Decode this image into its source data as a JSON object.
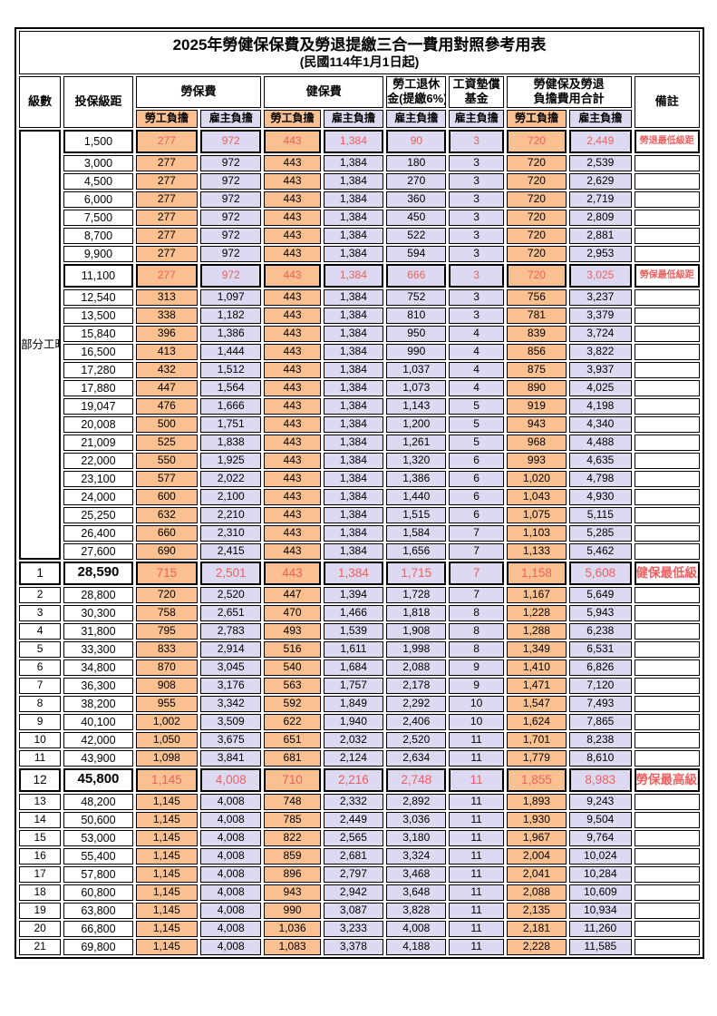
{
  "title": "2025年勞健保保費及勞退提繳三合一費用對照參考用表",
  "subtitle": "(民國114年1月1日起)",
  "colors": {
    "employee_bg": "#FAC090",
    "employer_bg": "#DCD9F0",
    "highlight_red": "#EE5F5F",
    "border": "#000000"
  },
  "header": {
    "level": "級數",
    "bracket": "投保級距",
    "labor_insurance": "勞保費",
    "health_insurance": "健保費",
    "pension_line1": "勞工退休",
    "pension_line2": "金(提繳6%)",
    "wage_fund_line1": "工資墊償",
    "wage_fund_line2": "基金",
    "total_line1": "勞健保及勞退",
    "total_line2": "負擔費用合計",
    "note": "備註",
    "employee_share": "勞工負擔",
    "employer_share": "雇主負擔"
  },
  "part_time_label": "部分工時",
  "rows": [
    {
      "lv": "",
      "br": "1,500",
      "a": "277",
      "b": "972",
      "c": "443",
      "d": "1,384",
      "e": "90",
      "f": "3",
      "g": "720",
      "h": "2,449",
      "note": "勞退最低級距",
      "hl": true
    },
    {
      "lv": "",
      "br": "3,000",
      "a": "277",
      "b": "972",
      "c": "443",
      "d": "1,384",
      "e": "180",
      "f": "3",
      "g": "720",
      "h": "2,539",
      "note": ""
    },
    {
      "lv": "",
      "br": "4,500",
      "a": "277",
      "b": "972",
      "c": "443",
      "d": "1,384",
      "e": "270",
      "f": "3",
      "g": "720",
      "h": "2,629",
      "note": ""
    },
    {
      "lv": "",
      "br": "6,000",
      "a": "277",
      "b": "972",
      "c": "443",
      "d": "1,384",
      "e": "360",
      "f": "3",
      "g": "720",
      "h": "2,719",
      "note": ""
    },
    {
      "lv": "",
      "br": "7,500",
      "a": "277",
      "b": "972",
      "c": "443",
      "d": "1,384",
      "e": "450",
      "f": "3",
      "g": "720",
      "h": "2,809",
      "note": ""
    },
    {
      "lv": "",
      "br": "8,700",
      "a": "277",
      "b": "972",
      "c": "443",
      "d": "1,384",
      "e": "522",
      "f": "3",
      "g": "720",
      "h": "2,881",
      "note": ""
    },
    {
      "lv": "",
      "br": "9,900",
      "a": "277",
      "b": "972",
      "c": "443",
      "d": "1,384",
      "e": "594",
      "f": "3",
      "g": "720",
      "h": "2,953",
      "note": ""
    },
    {
      "lv": "",
      "br": "11,100",
      "a": "277",
      "b": "972",
      "c": "443",
      "d": "1,384",
      "e": "666",
      "f": "3",
      "g": "720",
      "h": "3,025",
      "note": "勞保最低級距",
      "hl": true
    },
    {
      "lv": "",
      "br": "12,540",
      "a": "313",
      "b": "1,097",
      "c": "443",
      "d": "1,384",
      "e": "752",
      "f": "3",
      "g": "756",
      "h": "3,237",
      "note": ""
    },
    {
      "lv": "",
      "br": "13,500",
      "a": "338",
      "b": "1,182",
      "c": "443",
      "d": "1,384",
      "e": "810",
      "f": "3",
      "g": "781",
      "h": "3,379",
      "note": ""
    },
    {
      "lv": "",
      "br": "15,840",
      "a": "396",
      "b": "1,386",
      "c": "443",
      "d": "1,384",
      "e": "950",
      "f": "4",
      "g": "839",
      "h": "3,724",
      "note": ""
    },
    {
      "lv": "",
      "br": "16,500",
      "a": "413",
      "b": "1,444",
      "c": "443",
      "d": "1,384",
      "e": "990",
      "f": "4",
      "g": "856",
      "h": "3,822",
      "note": ""
    },
    {
      "lv": "",
      "br": "17,280",
      "a": "432",
      "b": "1,512",
      "c": "443",
      "d": "1,384",
      "e": "1,037",
      "f": "4",
      "g": "875",
      "h": "3,937",
      "note": ""
    },
    {
      "lv": "",
      "br": "17,880",
      "a": "447",
      "b": "1,564",
      "c": "443",
      "d": "1,384",
      "e": "1,073",
      "f": "4",
      "g": "890",
      "h": "4,025",
      "note": ""
    },
    {
      "lv": "",
      "br": "19,047",
      "a": "476",
      "b": "1,666",
      "c": "443",
      "d": "1,384",
      "e": "1,143",
      "f": "5",
      "g": "919",
      "h": "4,198",
      "note": ""
    },
    {
      "lv": "",
      "br": "20,008",
      "a": "500",
      "b": "1,751",
      "c": "443",
      "d": "1,384",
      "e": "1,200",
      "f": "5",
      "g": "943",
      "h": "4,340",
      "note": ""
    },
    {
      "lv": "",
      "br": "21,009",
      "a": "525",
      "b": "1,838",
      "c": "443",
      "d": "1,384",
      "e": "1,261",
      "f": "5",
      "g": "968",
      "h": "4,488",
      "note": ""
    },
    {
      "lv": "",
      "br": "22,000",
      "a": "550",
      "b": "1,925",
      "c": "443",
      "d": "1,384",
      "e": "1,320",
      "f": "6",
      "g": "993",
      "h": "4,635",
      "note": ""
    },
    {
      "lv": "",
      "br": "23,100",
      "a": "577",
      "b": "2,022",
      "c": "443",
      "d": "1,384",
      "e": "1,386",
      "f": "6",
      "g": "1,020",
      "h": "4,798",
      "note": ""
    },
    {
      "lv": "",
      "br": "24,000",
      "a": "600",
      "b": "2,100",
      "c": "443",
      "d": "1,384",
      "e": "1,440",
      "f": "6",
      "g": "1,043",
      "h": "4,930",
      "note": ""
    },
    {
      "lv": "",
      "br": "25,250",
      "a": "632",
      "b": "2,210",
      "c": "443",
      "d": "1,384",
      "e": "1,515",
      "f": "6",
      "g": "1,075",
      "h": "5,115",
      "note": ""
    },
    {
      "lv": "",
      "br": "26,400",
      "a": "660",
      "b": "2,310",
      "c": "443",
      "d": "1,384",
      "e": "1,584",
      "f": "7",
      "g": "1,103",
      "h": "5,285",
      "note": ""
    },
    {
      "lv": "",
      "br": "27,600",
      "a": "690",
      "b": "2,415",
      "c": "443",
      "d": "1,384",
      "e": "1,656",
      "f": "7",
      "g": "1,133",
      "h": "5,462",
      "note": ""
    },
    {
      "lv": "1",
      "br": "28,590",
      "a": "715",
      "b": "2,501",
      "c": "443",
      "d": "1,384",
      "e": "1,715",
      "f": "7",
      "g": "1,158",
      "h": "5,608",
      "note": "健保最低級距",
      "hl": true,
      "big": true
    },
    {
      "lv": "2",
      "br": "28,800",
      "a": "720",
      "b": "2,520",
      "c": "447",
      "d": "1,394",
      "e": "1,728",
      "f": "7",
      "g": "1,167",
      "h": "5,649",
      "note": ""
    },
    {
      "lv": "3",
      "br": "30,300",
      "a": "758",
      "b": "2,651",
      "c": "470",
      "d": "1,466",
      "e": "1,818",
      "f": "8",
      "g": "1,228",
      "h": "5,943",
      "note": ""
    },
    {
      "lv": "4",
      "br": "31,800",
      "a": "795",
      "b": "2,783",
      "c": "493",
      "d": "1,539",
      "e": "1,908",
      "f": "8",
      "g": "1,288",
      "h": "6,238",
      "note": ""
    },
    {
      "lv": "5",
      "br": "33,300",
      "a": "833",
      "b": "2,914",
      "c": "516",
      "d": "1,611",
      "e": "1,998",
      "f": "8",
      "g": "1,349",
      "h": "6,531",
      "note": ""
    },
    {
      "lv": "6",
      "br": "34,800",
      "a": "870",
      "b": "3,045",
      "c": "540",
      "d": "1,684",
      "e": "2,088",
      "f": "9",
      "g": "1,410",
      "h": "6,826",
      "note": ""
    },
    {
      "lv": "7",
      "br": "36,300",
      "a": "908",
      "b": "3,176",
      "c": "563",
      "d": "1,757",
      "e": "2,178",
      "f": "9",
      "g": "1,471",
      "h": "7,120",
      "note": ""
    },
    {
      "lv": "8",
      "br": "38,200",
      "a": "955",
      "b": "3,342",
      "c": "592",
      "d": "1,849",
      "e": "2,292",
      "f": "10",
      "g": "1,547",
      "h": "7,493",
      "note": ""
    },
    {
      "lv": "9",
      "br": "40,100",
      "a": "1,002",
      "b": "3,509",
      "c": "622",
      "d": "1,940",
      "e": "2,406",
      "f": "10",
      "g": "1,624",
      "h": "7,865",
      "note": ""
    },
    {
      "lv": "10",
      "br": "42,000",
      "a": "1,050",
      "b": "3,675",
      "c": "651",
      "d": "2,032",
      "e": "2,520",
      "f": "11",
      "g": "1,701",
      "h": "8,238",
      "note": ""
    },
    {
      "lv": "11",
      "br": "43,900",
      "a": "1,098",
      "b": "3,841",
      "c": "681",
      "d": "2,124",
      "e": "2,634",
      "f": "11",
      "g": "1,779",
      "h": "8,610",
      "note": ""
    },
    {
      "lv": "12",
      "br": "45,800",
      "a": "1,145",
      "b": "4,008",
      "c": "710",
      "d": "2,216",
      "e": "2,748",
      "f": "11",
      "g": "1,855",
      "h": "8,983",
      "note": "勞保最高級距",
      "hl": true,
      "big": true
    },
    {
      "lv": "13",
      "br": "48,200",
      "a": "1,145",
      "b": "4,008",
      "c": "748",
      "d": "2,332",
      "e": "2,892",
      "f": "11",
      "g": "1,893",
      "h": "9,243",
      "note": ""
    },
    {
      "lv": "14",
      "br": "50,600",
      "a": "1,145",
      "b": "4,008",
      "c": "785",
      "d": "2,449",
      "e": "3,036",
      "f": "11",
      "g": "1,930",
      "h": "9,504",
      "note": ""
    },
    {
      "lv": "15",
      "br": "53,000",
      "a": "1,145",
      "b": "4,008",
      "c": "822",
      "d": "2,565",
      "e": "3,180",
      "f": "11",
      "g": "1,967",
      "h": "9,764",
      "note": ""
    },
    {
      "lv": "16",
      "br": "55,400",
      "a": "1,145",
      "b": "4,008",
      "c": "859",
      "d": "2,681",
      "e": "3,324",
      "f": "11",
      "g": "2,004",
      "h": "10,024",
      "note": ""
    },
    {
      "lv": "17",
      "br": "57,800",
      "a": "1,145",
      "b": "4,008",
      "c": "896",
      "d": "2,797",
      "e": "3,468",
      "f": "11",
      "g": "2,041",
      "h": "10,284",
      "note": ""
    },
    {
      "lv": "18",
      "br": "60,800",
      "a": "1,145",
      "b": "4,008",
      "c": "943",
      "d": "2,942",
      "e": "3,648",
      "f": "11",
      "g": "2,088",
      "h": "10,609",
      "note": ""
    },
    {
      "lv": "19",
      "br": "63,800",
      "a": "1,145",
      "b": "4,008",
      "c": "990",
      "d": "3,087",
      "e": "3,828",
      "f": "11",
      "g": "2,135",
      "h": "10,934",
      "note": ""
    },
    {
      "lv": "20",
      "br": "66,800",
      "a": "1,145",
      "b": "4,008",
      "c": "1,036",
      "d": "3,233",
      "e": "4,008",
      "f": "11",
      "g": "2,181",
      "h": "11,260",
      "note": ""
    },
    {
      "lv": "21",
      "br": "69,800",
      "a": "1,145",
      "b": "4,008",
      "c": "1,083",
      "d": "3,378",
      "e": "4,188",
      "f": "11",
      "g": "2,228",
      "h": "11,585",
      "note": ""
    }
  ]
}
